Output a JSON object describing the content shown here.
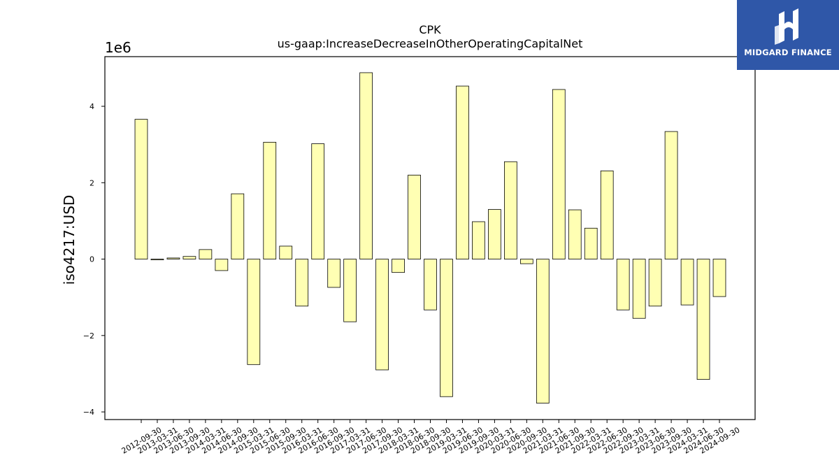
{
  "chart_data": {
    "type": "bar",
    "title": "CPK",
    "subtitle": "us-gaap:IncreaseDecreaseInOtherOperatingCapitalNet",
    "ylabel": "iso4217:USD",
    "xlabel": "",
    "y_scale_label": "1e6",
    "ylim": [
      -4.2,
      5.3
    ],
    "yticks": [
      -4,
      -2,
      0,
      2,
      4
    ],
    "ytick_labels": [
      "−4",
      "−2",
      "0",
      "2",
      "4"
    ],
    "grid": false,
    "bar_color": "#ffffb3",
    "bar_edge_color": "#000000",
    "categories": [
      "2012-09-30",
      "2013-03-31",
      "2013-06-30",
      "2013-09-30",
      "2014-03-31",
      "2014-06-30",
      "2014-09-30",
      "2015-03-31",
      "2015-06-30",
      "2015-09-30",
      "2016-03-31",
      "2016-06-30",
      "2016-09-30",
      "2017-03-31",
      "2017-06-30",
      "2017-09-30",
      "2018-03-31",
      "2018-06-30",
      "2018-09-30",
      "2019-03-31",
      "2019-06-30",
      "2019-09-30",
      "2020-03-31",
      "2020-06-30",
      "2020-09-30",
      "2021-03-31",
      "2021-06-30",
      "2021-09-30",
      "2022-03-31",
      "2022-06-30",
      "2022-09-30",
      "2023-03-31",
      "2023-06-30",
      "2023-09-30",
      "2024-03-31",
      "2024-06-30",
      "2024-09-30"
    ],
    "values": [
      3.66,
      -0.02,
      0.03,
      0.07,
      0.25,
      -0.3,
      1.71,
      -2.76,
      3.06,
      0.34,
      -1.23,
      3.02,
      -0.74,
      -1.64,
      4.88,
      -2.9,
      -0.35,
      2.2,
      -1.33,
      -3.6,
      4.53,
      0.98,
      1.3,
      2.55,
      -0.12,
      -3.77,
      4.44,
      1.29,
      0.81,
      2.31,
      -1.33,
      -1.55,
      -1.23,
      3.34,
      -1.2,
      -3.15,
      -0.98
    ]
  },
  "logo": {
    "text": "MIDGARD FINANCE",
    "color": "#2f57a8"
  }
}
